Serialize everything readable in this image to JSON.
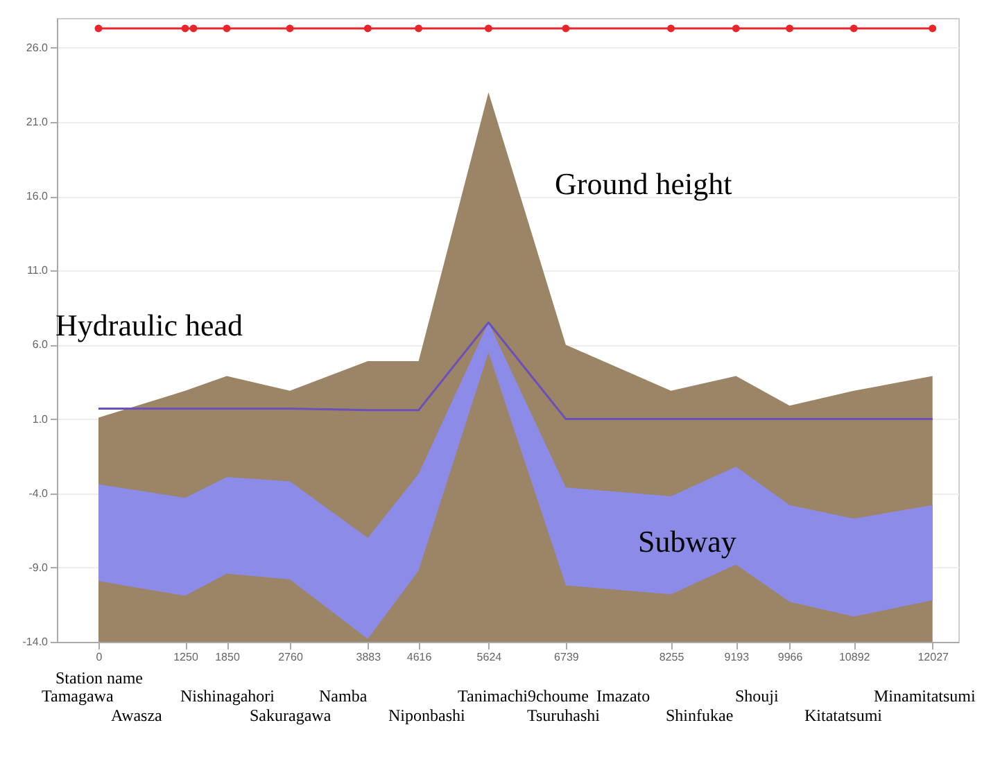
{
  "chart_data": {
    "type": "area",
    "x": [
      0,
      1250,
      1850,
      2760,
      3883,
      4616,
      5624,
      6739,
      8255,
      9193,
      9966,
      10892,
      12027
    ],
    "xlim": [
      -600,
      12400
    ],
    "xticks": [
      0,
      1250,
      1850,
      2760,
      3883,
      4616,
      5624,
      6739,
      8255,
      9193,
      9966,
      10892,
      12027
    ],
    "ylim": [
      -14,
      28
    ],
    "yticks": [
      {
        "value": -14,
        "label": "-14.0"
      },
      {
        "value": -9,
        "label": "-9.0"
      },
      {
        "value": -4,
        "label": "-4.0"
      },
      {
        "value": 1,
        "label": "1.0"
      },
      {
        "value": 6,
        "label": "6.0"
      },
      {
        "value": 11,
        "label": "11.0"
      },
      {
        "value": 16,
        "label": "16.0"
      },
      {
        "value": 21,
        "label": "21.0"
      },
      {
        "value": 26,
        "label": "26.0"
      }
    ],
    "grid": "y",
    "series": [
      {
        "type": "line",
        "color": "#9c8466",
        "values": [
          null,
          null,
          null,
          null,
          null,
          null,
          null,
          null,
          null,
          null,
          null,
          null,
          null
        ],
        "upper": [
          1.1,
          2.9,
          3.9,
          2.9,
          4.9,
          4.9,
          23.0,
          6.0,
          2.9,
          3.9,
          1.9,
          2.9,
          3.9
        ],
        "lower": [
          -14,
          -14,
          -14,
          -14,
          -14,
          -14,
          -14,
          -14,
          -14,
          -14,
          -14,
          -14,
          -14
        ]
      },
      {
        "type": "line",
        "color": "#8c8ce8",
        "values": [
          null,
          null,
          null,
          null,
          null,
          null,
          null,
          null,
          null,
          null,
          null,
          null,
          null
        ],
        "upper": [
          -3.4,
          -4.3,
          -2.9,
          -3.2,
          -7.0,
          -2.7,
          7.5,
          -3.6,
          -4.2,
          -2.2,
          -4.8,
          -5.7,
          -4.8
        ],
        "lower": [
          -9.9,
          -10.9,
          -9.4,
          -9.8,
          -13.8,
          -9.2,
          5.5,
          -10.2,
          -10.8,
          -8.8,
          -11.3,
          -12.3,
          -11.2
        ]
      },
      {
        "type": "line",
        "color": "#6a50b8",
        "values": [
          1.7,
          1.7,
          1.7,
          1.7,
          1.6,
          1.6,
          7.5,
          1.0,
          1.0,
          1.0,
          1.0,
          1.0,
          1.0
        ]
      },
      {
        "type": "line",
        "color": "#e8262a",
        "marker": "circle",
        "x": [
          0,
          1250,
          1370,
          1850,
          2760,
          3883,
          4616,
          5624,
          6739,
          8255,
          9193,
          9966,
          10892,
          12027
        ],
        "values": [
          27.3,
          27.3,
          27.3,
          27.3,
          27.3,
          27.3,
          27.3,
          27.3,
          27.3,
          27.3,
          27.3,
          27.3,
          27.3,
          27.3
        ]
      }
    ],
    "annotations": [
      "Hydraulic head",
      "Ground height",
      "Subway",
      "Station name",
      "Tamagawa",
      "Awasza",
      "Nishinagahori",
      "Sakuragawa",
      "Namba",
      "Niponbashi",
      "Tanimachi9choume",
      "Tsuruhashi",
      "Imazato",
      "Shinfukae",
      "Shouji",
      "Kitatatsumi",
      "Minamitatsumi"
    ]
  }
}
